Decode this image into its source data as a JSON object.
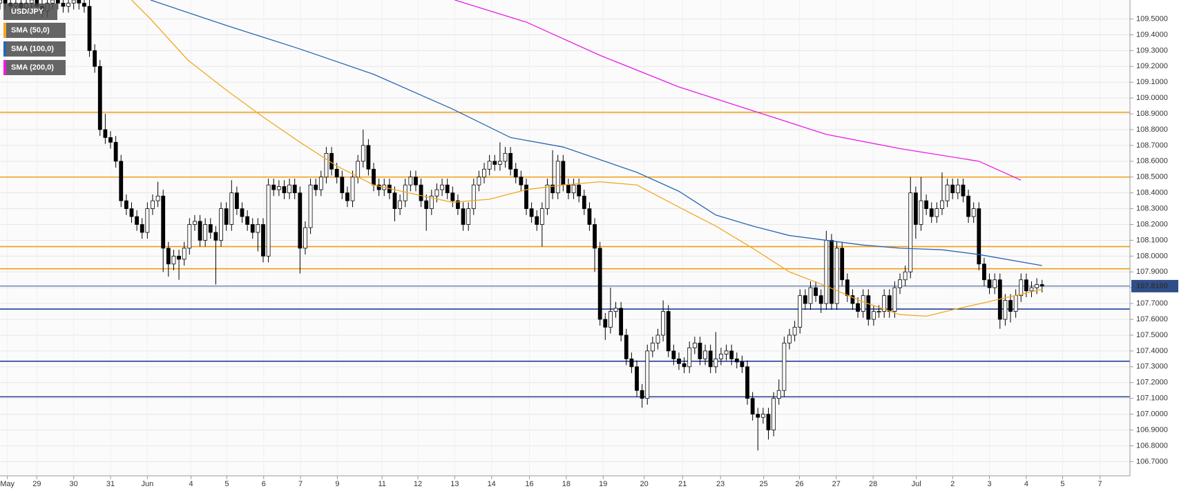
{
  "chart_data": {
    "type": "candlestick",
    "symbol": "USD/JPY",
    "xlim": [
      0,
      214.7
    ],
    "ylim": [
      106.61,
      109.62
    ],
    "grid": true,
    "up_color": "#ffffff",
    "down_color": "#000000",
    "yticks": [
      {
        "value": 106.7,
        "label": "106.7000"
      },
      {
        "value": 106.8,
        "label": "106.8000"
      },
      {
        "value": 106.9,
        "label": "106.9000"
      },
      {
        "value": 107.0,
        "label": "107.0000"
      },
      {
        "value": 107.1,
        "label": "107.1000"
      },
      {
        "value": 107.2,
        "label": "107.2000"
      },
      {
        "value": 107.3,
        "label": "107.3000"
      },
      {
        "value": 107.4,
        "label": "107.4000"
      },
      {
        "value": 107.5,
        "label": "107.5000"
      },
      {
        "value": 107.6,
        "label": "107.6000"
      },
      {
        "value": 107.7,
        "label": "107.7000"
      },
      {
        "value": 107.8,
        "label": "107.8000"
      },
      {
        "value": 107.9,
        "label": "107.9000"
      },
      {
        "value": 108.0,
        "label": "108.0000"
      },
      {
        "value": 108.1,
        "label": "108.1000"
      },
      {
        "value": 108.2,
        "label": "108.2000"
      },
      {
        "value": 108.3,
        "label": "108.3000"
      },
      {
        "value": 108.4,
        "label": "108.4000"
      },
      {
        "value": 108.5,
        "label": "108.5000"
      },
      {
        "value": 108.6,
        "label": "108.6000"
      },
      {
        "value": 108.7,
        "label": "108.7000"
      },
      {
        "value": 108.8,
        "label": "108.8000"
      },
      {
        "value": 108.9,
        "label": "108.9000"
      },
      {
        "value": 109.0,
        "label": "109.0000"
      },
      {
        "value": 109.1,
        "label": "109.1000"
      },
      {
        "value": 109.2,
        "label": "109.2000"
      },
      {
        "value": 109.3,
        "label": "109.3000"
      },
      {
        "value": 109.4,
        "label": "109.4000"
      },
      {
        "value": 109.5,
        "label": "109.5000"
      }
    ],
    "xticks": [
      {
        "value": 1.4,
        "label": "May"
      },
      {
        "value": 7,
        "label": "29"
      },
      {
        "value": 14,
        "label": "30"
      },
      {
        "value": 21,
        "label": "31"
      },
      {
        "value": 28,
        "label": "Jun"
      },
      {
        "value": 36.3,
        "label": "4"
      },
      {
        "value": 43.1,
        "label": "5"
      },
      {
        "value": 50.1,
        "label": "6"
      },
      {
        "value": 57.1,
        "label": "7"
      },
      {
        "value": 64.1,
        "label": "9"
      },
      {
        "value": 72.6,
        "label": "11"
      },
      {
        "value": 79.4,
        "label": "12"
      },
      {
        "value": 86.4,
        "label": "13"
      },
      {
        "value": 93.4,
        "label": "14"
      },
      {
        "value": 100.6,
        "label": "16"
      },
      {
        "value": 107.6,
        "label": "18"
      },
      {
        "value": 114.6,
        "label": "19"
      },
      {
        "value": 122.4,
        "label": "20"
      },
      {
        "value": 129.7,
        "label": "21"
      },
      {
        "value": 136.9,
        "label": "23"
      },
      {
        "value": 145.1,
        "label": "25"
      },
      {
        "value": 151.9,
        "label": "26"
      },
      {
        "value": 158.9,
        "label": "27"
      },
      {
        "value": 165.9,
        "label": "28"
      },
      {
        "value": 174.1,
        "label": "Jul"
      },
      {
        "value": 181,
        "label": "2"
      },
      {
        "value": 188,
        "label": "3"
      },
      {
        "value": 195,
        "label": "4"
      },
      {
        "value": 201.9,
        "label": "5"
      },
      {
        "value": 209,
        "label": "7"
      }
    ],
    "candles": {
      "open": [
        109.6,
        109.62,
        109.6,
        109.58,
        109.6,
        109.57,
        109.6,
        109.62,
        109.58,
        109.55,
        109.6,
        109.62,
        109.6,
        109.58,
        109.6,
        109.62,
        109.6,
        109.58,
        109.3,
        109.2,
        108.8,
        108.75,
        108.72,
        108.6,
        108.35,
        108.3,
        108.25,
        108.2,
        108.15,
        108.3,
        108.35,
        108.38,
        108.05,
        107.95,
        108.0,
        107.98,
        108.05,
        108.2,
        108.22,
        108.1,
        108.2,
        108.15,
        108.1,
        108.3,
        108.2,
        108.4,
        108.3,
        108.25,
        108.2,
        108.15,
        108.2,
        108.0,
        108.45,
        108.42,
        108.44,
        108.4,
        108.45,
        108.4,
        108.05,
        108.18,
        108.45,
        108.42,
        108.5,
        108.65,
        108.55,
        108.5,
        108.4,
        108.35,
        108.5,
        108.6,
        108.7,
        108.55,
        108.45,
        108.42,
        108.45,
        108.4,
        108.3,
        108.35,
        108.45,
        108.5,
        108.45,
        108.35,
        108.3,
        108.38,
        108.42,
        108.45,
        108.4,
        108.35,
        108.3,
        108.2,
        108.3,
        108.45,
        108.5,
        108.55,
        108.6,
        108.58,
        108.6,
        108.65,
        108.55,
        108.5,
        108.45,
        108.3,
        108.25,
        108.2,
        108.3,
        108.45,
        108.4,
        108.6,
        108.45,
        108.4,
        108.45,
        108.38,
        108.3,
        108.2,
        108.05,
        107.6,
        107.55,
        107.65,
        107.67,
        107.5,
        107.35,
        107.3,
        107.15,
        107.1,
        107.4,
        107.45,
        107.5,
        107.65,
        107.4,
        107.35,
        107.32,
        107.3,
        107.42,
        107.45,
        107.35,
        107.4,
        107.3,
        107.35,
        107.38,
        107.4,
        107.35,
        107.33,
        107.3,
        107.1,
        107.0,
        106.98,
        107.0,
        106.9,
        107.1,
        107.15,
        107.45,
        107.5,
        107.55,
        107.75,
        107.7,
        107.8,
        107.75,
        107.7,
        108.1,
        107.7,
        108.05,
        107.85,
        107.75,
        107.7,
        107.65,
        107.75,
        107.6,
        107.65,
        107.65,
        107.75,
        107.65,
        107.8,
        107.85,
        107.9,
        108.4,
        108.2,
        108.35,
        108.3,
        108.25,
        108.3,
        108.35,
        108.45,
        108.4,
        108.45,
        108.38,
        108.25,
        108.3,
        107.95,
        107.85,
        107.8,
        107.85,
        107.6,
        107.72,
        107.65,
        107.75,
        107.85,
        107.78,
        107.8,
        107.82
      ],
      "high": [
        109.66,
        109.66,
        109.64,
        109.64,
        109.64,
        109.64,
        109.66,
        109.66,
        109.62,
        109.64,
        109.66,
        109.66,
        109.64,
        109.64,
        109.66,
        109.66,
        109.64,
        109.62,
        109.34,
        109.24,
        108.9,
        108.79,
        108.76,
        108.64,
        108.39,
        108.34,
        108.29,
        108.24,
        108.34,
        108.39,
        108.47,
        108.42,
        108.09,
        108.04,
        108.04,
        108.09,
        108.24,
        108.26,
        108.26,
        108.24,
        108.24,
        108.19,
        108.34,
        108.34,
        108.48,
        108.44,
        108.34,
        108.29,
        108.24,
        108.24,
        108.24,
        108.49,
        108.49,
        108.48,
        108.48,
        108.49,
        108.49,
        108.44,
        108.22,
        108.49,
        108.49,
        108.54,
        108.69,
        108.69,
        108.59,
        108.54,
        108.44,
        108.54,
        108.64,
        108.8,
        108.74,
        108.59,
        108.49,
        108.49,
        108.49,
        108.44,
        108.39,
        108.49,
        108.54,
        108.54,
        108.49,
        108.39,
        108.42,
        108.46,
        108.49,
        108.49,
        108.44,
        108.39,
        108.34,
        108.34,
        108.49,
        108.54,
        108.59,
        108.64,
        108.64,
        108.72,
        108.69,
        108.69,
        108.59,
        108.54,
        108.49,
        108.34,
        108.29,
        108.34,
        108.49,
        108.67,
        108.64,
        108.64,
        108.49,
        108.49,
        108.49,
        108.42,
        108.34,
        108.24,
        108.09,
        107.64,
        107.8,
        107.71,
        107.71,
        107.54,
        107.39,
        107.34,
        107.19,
        107.44,
        107.49,
        107.54,
        107.72,
        107.69,
        107.44,
        107.39,
        107.36,
        107.46,
        107.49,
        107.49,
        107.44,
        107.44,
        107.52,
        107.42,
        107.44,
        107.44,
        107.39,
        107.37,
        107.34,
        107.14,
        107.04,
        107.04,
        107.04,
        107.14,
        107.22,
        107.49,
        107.54,
        107.59,
        107.79,
        107.79,
        107.84,
        107.84,
        107.79,
        108.16,
        108.14,
        108.09,
        108.09,
        107.89,
        107.79,
        107.74,
        107.79,
        107.79,
        107.69,
        107.69,
        107.79,
        107.79,
        107.84,
        107.89,
        107.94,
        108.5,
        108.44,
        108.5,
        108.39,
        108.34,
        108.34,
        108.53,
        108.49,
        108.49,
        108.49,
        108.49,
        108.42,
        108.34,
        108.34,
        107.99,
        107.89,
        107.89,
        107.89,
        107.76,
        107.76,
        107.79,
        107.89,
        107.89,
        107.84,
        107.86,
        107.85
      ],
      "low": [
        109.56,
        109.56,
        109.54,
        109.54,
        109.53,
        109.53,
        109.56,
        109.54,
        109.51,
        109.51,
        109.56,
        109.56,
        109.54,
        109.54,
        109.56,
        109.56,
        109.54,
        109.26,
        109.16,
        108.76,
        108.71,
        108.68,
        108.56,
        108.31,
        108.26,
        108.21,
        108.16,
        108.11,
        108.11,
        108.26,
        108.31,
        107.9,
        107.87,
        107.91,
        107.85,
        107.94,
        108.01,
        108.16,
        108.06,
        108.06,
        108.11,
        107.82,
        108.06,
        108.16,
        108.16,
        108.26,
        108.21,
        108.16,
        108.11,
        108.03,
        107.96,
        107.96,
        108.38,
        108.38,
        108.36,
        108.36,
        108.36,
        107.89,
        108.01,
        108.14,
        108.38,
        108.38,
        108.46,
        108.51,
        108.46,
        108.36,
        108.31,
        108.31,
        108.46,
        108.56,
        108.51,
        108.41,
        108.38,
        108.38,
        108.36,
        108.22,
        108.26,
        108.31,
        108.41,
        108.41,
        108.31,
        108.16,
        108.26,
        108.34,
        108.38,
        108.36,
        108.31,
        108.26,
        108.16,
        108.16,
        108.26,
        108.41,
        108.46,
        108.51,
        108.54,
        108.54,
        108.56,
        108.51,
        108.46,
        108.41,
        108.26,
        108.21,
        108.16,
        108.06,
        108.26,
        108.36,
        108.36,
        108.41,
        108.36,
        108.36,
        108.34,
        108.26,
        108.16,
        107.9,
        107.56,
        107.47,
        107.51,
        107.61,
        107.46,
        107.31,
        107.26,
        107.11,
        107.04,
        107.06,
        107.36,
        107.41,
        107.46,
        107.36,
        107.31,
        107.28,
        107.26,
        107.26,
        107.38,
        107.31,
        107.31,
        107.26,
        107.26,
        107.31,
        107.34,
        107.31,
        107.29,
        107.26,
        107.06,
        106.96,
        106.77,
        106.94,
        106.84,
        106.86,
        107.06,
        107.11,
        107.41,
        107.46,
        107.51,
        107.66,
        107.66,
        107.71,
        107.64,
        107.66,
        107.66,
        107.66,
        107.81,
        107.71,
        107.66,
        107.61,
        107.61,
        107.56,
        107.56,
        107.61,
        107.61,
        107.61,
        107.61,
        107.76,
        107.81,
        107.86,
        108.11,
        108.16,
        108.26,
        108.21,
        108.21,
        108.26,
        108.31,
        108.36,
        108.36,
        108.34,
        108.21,
        108.21,
        107.91,
        107.81,
        107.76,
        107.76,
        107.54,
        107.56,
        107.58,
        107.61,
        107.71,
        107.74,
        107.74,
        107.76,
        107.77
      ],
      "close": [
        109.62,
        109.6,
        109.58,
        109.6,
        109.57,
        109.6,
        109.62,
        109.58,
        109.55,
        109.6,
        109.62,
        109.6,
        109.58,
        109.6,
        109.62,
        109.6,
        109.58,
        109.3,
        109.2,
        108.8,
        108.75,
        108.72,
        108.6,
        108.35,
        108.3,
        108.25,
        108.2,
        108.15,
        108.3,
        108.35,
        108.38,
        108.05,
        107.95,
        108.0,
        107.98,
        108.05,
        108.2,
        108.22,
        108.1,
        108.2,
        108.15,
        108.1,
        108.3,
        108.2,
        108.4,
        108.3,
        108.25,
        108.2,
        108.15,
        108.2,
        108.0,
        108.45,
        108.42,
        108.44,
        108.4,
        108.45,
        108.4,
        108.05,
        108.18,
        108.45,
        108.42,
        108.5,
        108.65,
        108.55,
        108.5,
        108.4,
        108.35,
        108.5,
        108.6,
        108.7,
        108.55,
        108.45,
        108.42,
        108.45,
        108.4,
        108.3,
        108.35,
        108.45,
        108.5,
        108.45,
        108.35,
        108.3,
        108.38,
        108.42,
        108.45,
        108.4,
        108.35,
        108.3,
        108.2,
        108.3,
        108.45,
        108.5,
        108.55,
        108.6,
        108.58,
        108.6,
        108.65,
        108.55,
        108.5,
        108.45,
        108.3,
        108.25,
        108.2,
        108.3,
        108.45,
        108.4,
        108.6,
        108.45,
        108.4,
        108.45,
        108.38,
        108.3,
        108.2,
        108.05,
        107.6,
        107.55,
        107.65,
        107.67,
        107.5,
        107.35,
        107.3,
        107.15,
        107.1,
        107.4,
        107.45,
        107.5,
        107.65,
        107.4,
        107.35,
        107.32,
        107.3,
        107.42,
        107.45,
        107.35,
        107.4,
        107.3,
        107.35,
        107.38,
        107.4,
        107.35,
        107.33,
        107.3,
        107.1,
        107.0,
        106.98,
        107.0,
        106.9,
        107.1,
        107.15,
        107.45,
        107.5,
        107.55,
        107.75,
        107.7,
        107.8,
        107.75,
        107.7,
        108.1,
        107.7,
        108.05,
        107.85,
        107.75,
        107.7,
        107.65,
        107.75,
        107.6,
        107.65,
        107.65,
        107.75,
        107.65,
        107.8,
        107.85,
        107.9,
        108.4,
        108.2,
        108.35,
        108.3,
        108.25,
        108.3,
        108.35,
        108.45,
        108.4,
        108.45,
        108.38,
        108.25,
        108.3,
        107.95,
        107.85,
        107.8,
        107.85,
        107.6,
        107.72,
        107.65,
        107.75,
        107.85,
        107.78,
        107.8,
        107.82,
        107.81
      ]
    },
    "series": [
      {
        "name": "SMA (50,0)",
        "color": "#f5a623",
        "x": [
          25,
          28.6,
          35.7,
          43,
          50,
          57,
          64,
          71,
          79,
          86,
          93,
          100,
          107,
          114,
          121,
          129,
          136,
          143,
          150,
          157,
          164,
          171,
          176,
          181,
          189,
          198
        ],
        "values": [
          109.62,
          109.5,
          109.24,
          109.05,
          108.88,
          108.72,
          108.57,
          108.45,
          108.39,
          108.34,
          108.36,
          108.42,
          108.45,
          108.47,
          108.45,
          108.31,
          108.19,
          108.05,
          107.9,
          107.81,
          107.71,
          107.63,
          107.62,
          107.66,
          107.72,
          107.79
        ]
      },
      {
        "name": "SMA (100,0)",
        "color": "#2a65b5",
        "x": [
          28.6,
          42.9,
          57,
          71,
          86,
          97,
          107,
          114,
          121,
          129,
          136,
          143,
          150,
          157,
          164,
          171,
          179,
          186,
          198
        ],
        "values": [
          109.62,
          109.46,
          109.31,
          109.15,
          108.93,
          108.75,
          108.69,
          108.61,
          108.53,
          108.41,
          108.26,
          108.19,
          108.13,
          108.1,
          108.07,
          108.05,
          108.04,
          108.01,
          107.94
        ]
      },
      {
        "name": "SMA (200,0)",
        "color": "#e91be9",
        "x": [
          86.4,
          100,
          114,
          129,
          143,
          157,
          171,
          186,
          194
        ],
        "values": [
          109.62,
          109.48,
          109.27,
          109.07,
          108.92,
          108.77,
          108.68,
          108.6,
          108.48
        ]
      }
    ],
    "levels": [
      {
        "value": 108.91,
        "color": "#f39c12"
      },
      {
        "value": 108.5,
        "color": "#f39c12"
      },
      {
        "value": 108.06,
        "color": "#f39c12"
      },
      {
        "value": 107.92,
        "color": "#f39c12"
      },
      {
        "value": 107.665,
        "color": "#1f3d99"
      },
      {
        "value": 107.335,
        "color": "#1f3d99"
      },
      {
        "value": 107.11,
        "color": "#1f3d99"
      }
    ],
    "last_price": {
      "value": 107.81,
      "label": "107.8100",
      "color": "#2f4e8a"
    }
  }
}
